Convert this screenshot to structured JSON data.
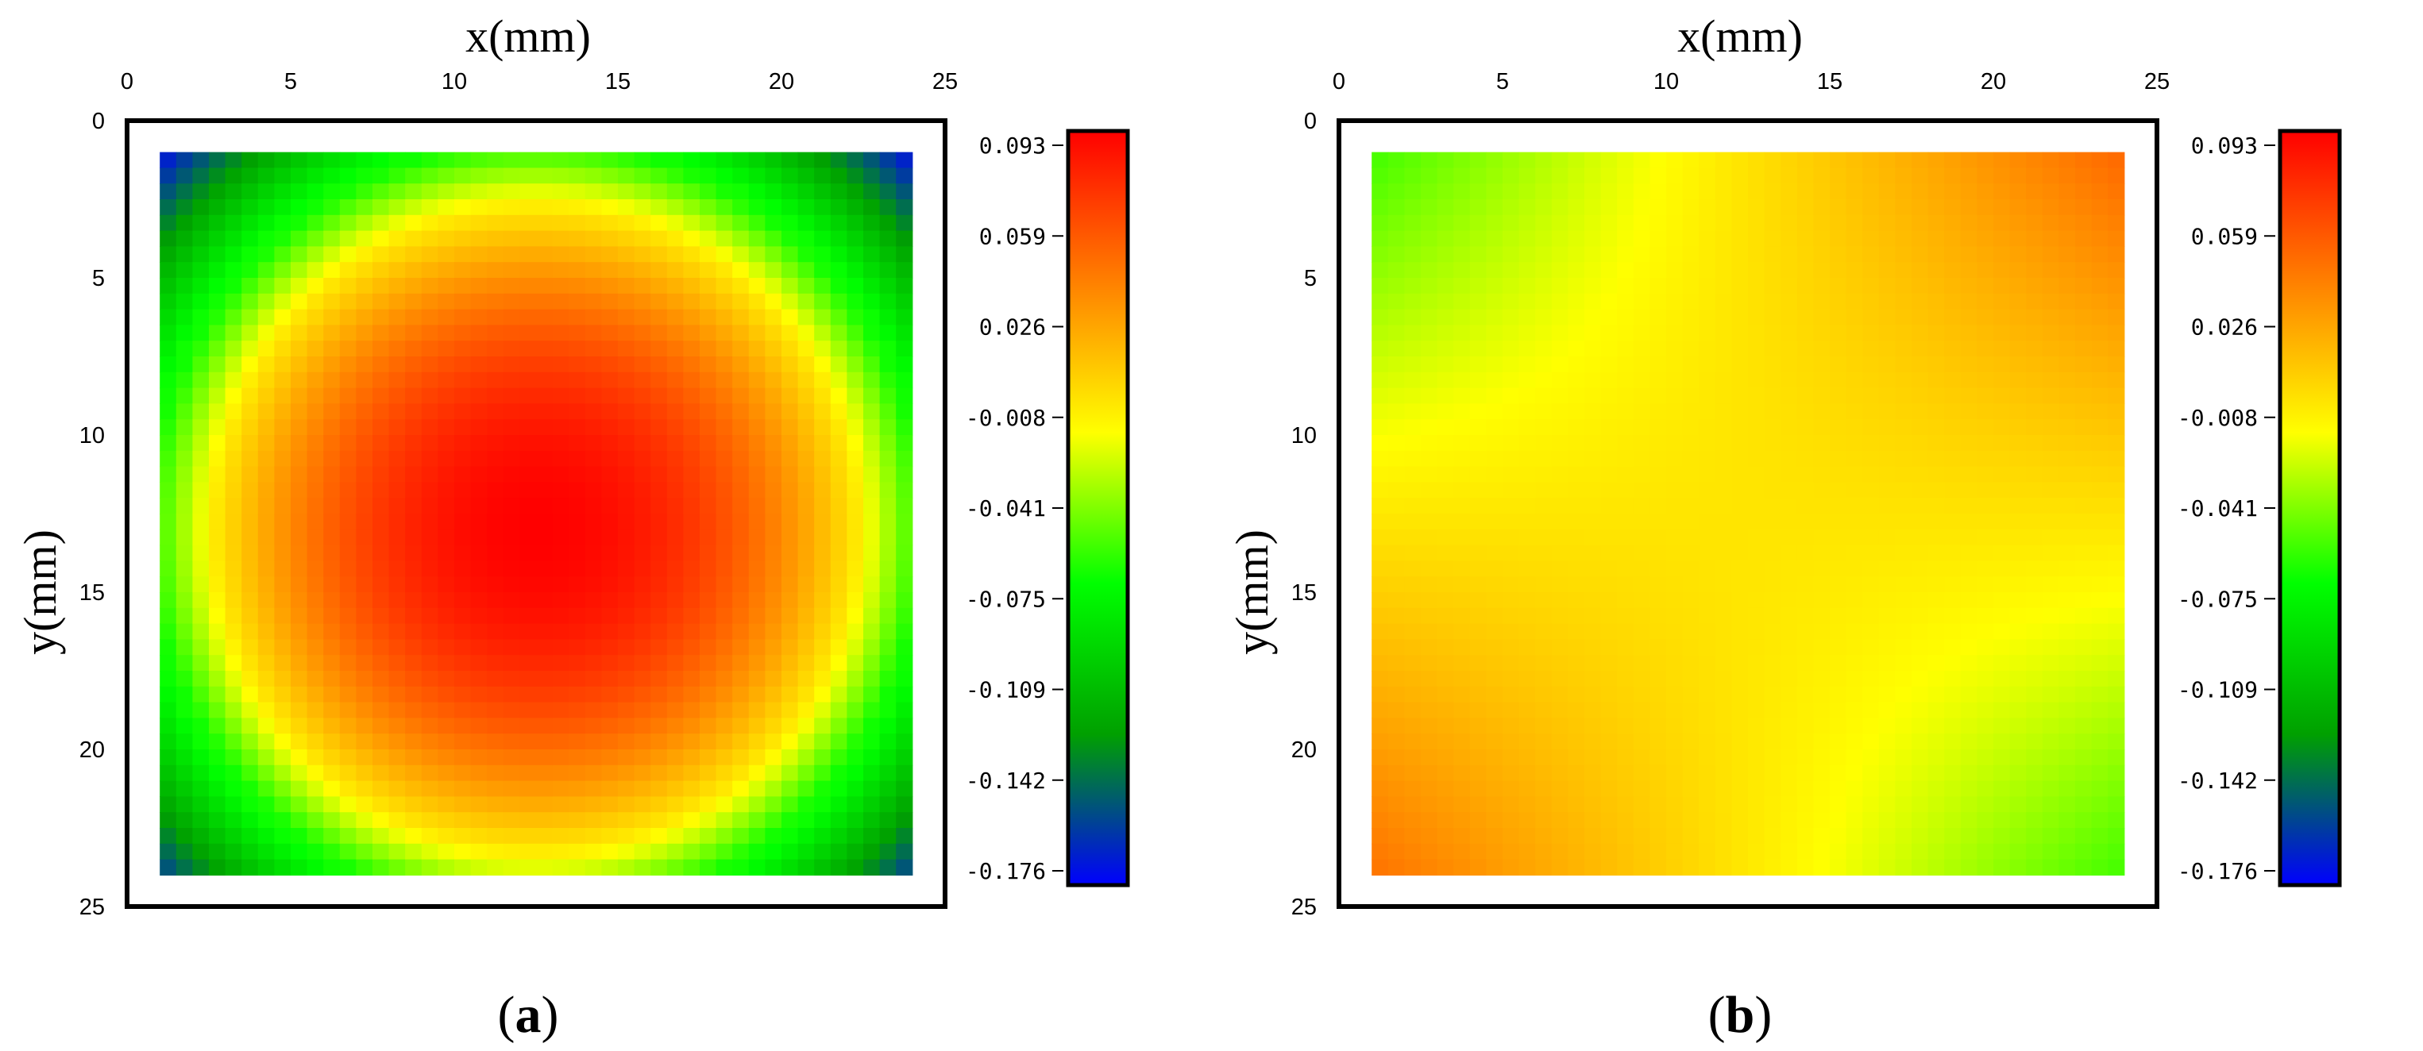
{
  "chart_data": [
    {
      "type": "heatmap",
      "caption": "a",
      "xlabel": "x(mm)",
      "ylabel": "y(mm)",
      "xlim": [
        0,
        25
      ],
      "ylim": [
        0,
        25
      ],
      "y_inverted": true,
      "x_ticks": [
        "0",
        "5",
        "10",
        "15",
        "20",
        "25"
      ],
      "y_ticks": [
        "0",
        "5",
        "10",
        "15",
        "20",
        "25"
      ],
      "data_extent": {
        "x": [
          1,
          24
        ],
        "y": [
          1,
          24
        ]
      },
      "colormap": [
        "#0000ff",
        "#00a000",
        "#00ff00",
        "#ffff00",
        "#ff8000",
        "#ff0000"
      ],
      "colorbar": {
        "range": [
          -0.176,
          0.093
        ],
        "tick_labels": [
          "0.093",
          "0.059",
          "0.026",
          "-0.008",
          "-0.041",
          "-0.075",
          "-0.109",
          "-0.142",
          "-0.176"
        ],
        "placement": "right"
      },
      "field": {
        "description_values": "peak ~0.093 at center (x≈12.5, y≈13), yellow ring ~0.0 at r≈10 mm, green ~-0.06 beyond, blue ~-0.176 at corners",
        "center": [
          12.5,
          13
        ],
        "peak": 0.093,
        "corner_min": -0.176
      }
    },
    {
      "type": "heatmap",
      "caption": "b",
      "xlabel": "x(mm)",
      "ylabel": "y(mm)",
      "xlim": [
        0,
        25
      ],
      "ylim": [
        0,
        25
      ],
      "y_inverted": true,
      "x_ticks": [
        "0",
        "5",
        "10",
        "15",
        "20",
        "25"
      ],
      "y_ticks": [
        "0",
        "5",
        "10",
        "15",
        "20",
        "25"
      ],
      "data_extent": {
        "x": [
          1,
          24
        ],
        "y": [
          1,
          24
        ]
      },
      "colormap": [
        "#0000ff",
        "#00a000",
        "#00ff00",
        "#ffff00",
        "#ff8000",
        "#ff0000"
      ],
      "colorbar": {
        "range": [
          -0.176,
          0.093
        ],
        "tick_labels": [
          "0.093",
          "0.059",
          "0.026",
          "-0.008",
          "-0.041",
          "-0.075",
          "-0.109",
          "-0.142",
          "-0.176"
        ],
        "placement": "right"
      },
      "field": {
        "corner_values": {
          "top_left": -0.055,
          "top_right": 0.05,
          "bottom_left": 0.045,
          "bottom_right": -0.055
        },
        "center_value": 0.0
      }
    }
  ]
}
